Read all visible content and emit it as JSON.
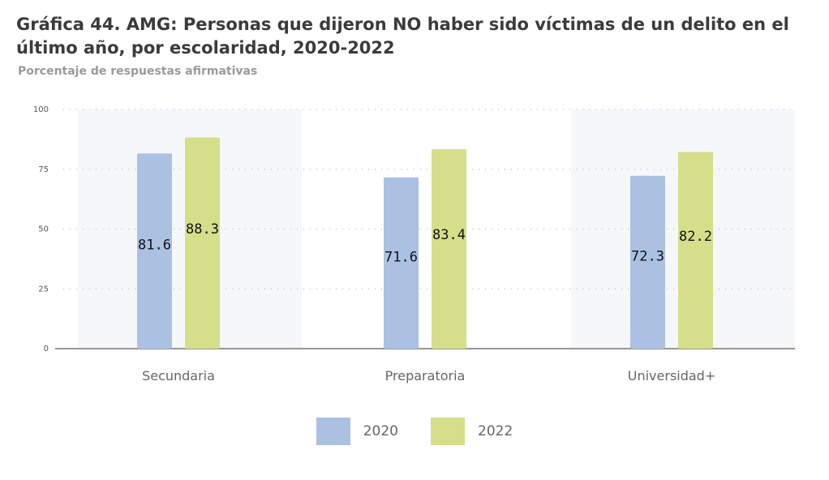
{
  "title": "Gráfica 44. AMG: Personas que dijeron NO haber sido víctimas de un delito en el último año, por escolaridad, 2020-2022",
  "subtitle": "Porcentaje de respuestas afirmativas",
  "colors": {
    "s2020": "#aac1e2",
    "s2022": "#d6de8a",
    "band": "#f6f7fb",
    "grid": "#bbbbbb",
    "axis": "#777777"
  },
  "chart_data": {
    "type": "bar",
    "title": "Gráfica 44. AMG: Personas que dijeron NO haber sido víctimas de un delito en el último año, por escolaridad, 2020-2022",
    "subtitle": "Porcentaje de respuestas afirmativas",
    "categories": [
      "Secundaria",
      "Preparatoria",
      "Universidad+"
    ],
    "series": [
      {
        "name": "2020",
        "values": [
          81.6,
          71.6,
          72.3
        ],
        "labels": [
          "81.6",
          "71.6",
          "72.3"
        ]
      },
      {
        "name": "2022",
        "values": [
          88.3,
          83.4,
          82.2
        ],
        "labels": [
          "88.3",
          "83.4",
          "82.2"
        ]
      }
    ],
    "yticks": [
      "0",
      "25",
      "50",
      "75",
      "100"
    ],
    "ylim": [
      0,
      100
    ],
    "grid": true,
    "legend_position": "bottom"
  }
}
